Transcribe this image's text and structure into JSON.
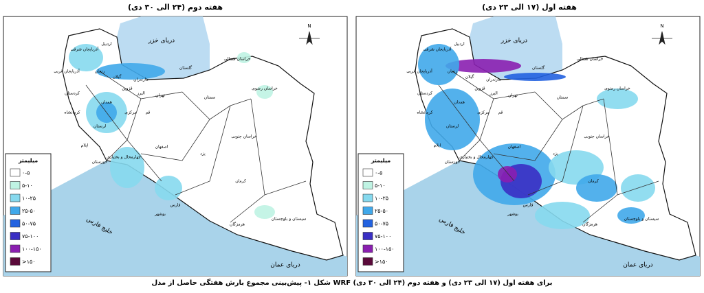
{
  "maps": [
    {
      "title": "هفته دوم (۲۴ الی ۳۰ دی)"
    },
    {
      "title": "هفته اول (۱۷ الی ۲۳ دی)"
    }
  ],
  "legend": {
    "title": "میلیمتر",
    "items": [
      {
        "label": "۰-۵",
        "color": "#ffffff"
      },
      {
        "label": "۵-۱۰",
        "color": "#bff3e3"
      },
      {
        "label": "۱۰-۲۵",
        "color": "#86d9ee"
      },
      {
        "label": "۲۵-۵۰",
        "color": "#40a8ea"
      },
      {
        "label": "۵۰-۷۵",
        "color": "#2262e0"
      },
      {
        "label": "۷۵-۱۰۰",
        "color": "#3a2fc4"
      },
      {
        "label": "۱۰۰-۱۵۰",
        "color": "#8a1fb0"
      },
      {
        "label": ">۱۵۰",
        "color": "#5a0a3a"
      }
    ]
  },
  "seas": [
    "دریای خزر",
    "خلیج فارس",
    "دریای عمان"
  ],
  "north_label": "N",
  "provinces": [
    "آذربایجان شرقی",
    "اردبیل",
    "آذربایجان غربی",
    "زنجان",
    "گیلان",
    "مازندران",
    "گلستان",
    "خراسان شمالی",
    "خراسان رضوی",
    "سمنان",
    "تهران",
    "البرز",
    "قزوین",
    "کردستان",
    "همدان",
    "کرمانشاه",
    "مرکزی",
    "قم",
    "لرستان",
    "ایلام",
    "اصفهان",
    "خوزستان",
    "چهارمحال و بختیاری",
    "یزد",
    "خراسان جنوبی",
    "کرمان",
    "فارس",
    "بوشهر",
    "هرمزگان",
    "سیستان و بلوچستان"
  ],
  "caption": "شکل ۱- پیش‌بینی مجموع بارش هفتگی حاصل از مدل WRF برای هفته اول (۱۷ الی ۲۳ دی) و هفته دوم (۲۴ الی ۳۰ دی)"
}
